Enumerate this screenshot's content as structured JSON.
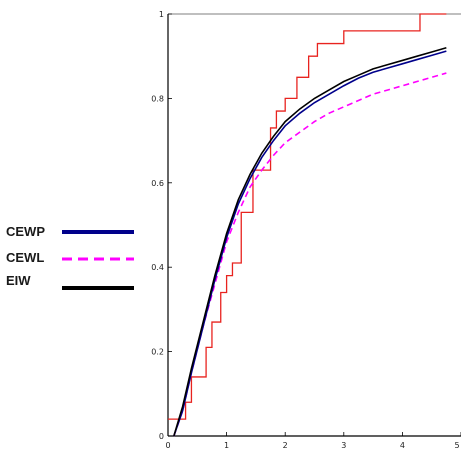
{
  "chart_data": {
    "type": "line",
    "title": "",
    "xlabel": "",
    "ylabel": "",
    "xlim": [
      0,
      5
    ],
    "ylim": [
      0,
      1
    ],
    "x_ticks": [
      "0",
      "1",
      "2",
      "3",
      "4",
      "5"
    ],
    "y_ticks": [
      "0",
      "0.2",
      "0.4",
      "0.6",
      "0.8",
      "1"
    ],
    "grid": false,
    "legend_position": "left",
    "series": [
      {
        "name": "EIW",
        "style": "solid",
        "color": "#000000",
        "x": [
          0.1,
          0.25,
          0.4,
          0.6,
          0.8,
          1.0,
          1.2,
          1.4,
          1.6,
          1.8,
          2.0,
          2.25,
          2.5,
          2.75,
          3.0,
          3.25,
          3.5,
          3.75,
          4.0,
          4.25,
          4.5,
          4.75
        ],
        "y": [
          0.0,
          0.07,
          0.16,
          0.27,
          0.38,
          0.48,
          0.56,
          0.62,
          0.67,
          0.71,
          0.745,
          0.775,
          0.8,
          0.82,
          0.84,
          0.855,
          0.87,
          0.88,
          0.89,
          0.9,
          0.91,
          0.92
        ]
      },
      {
        "name": "CEWP",
        "style": "solid",
        "color": "#00008b",
        "x": [
          0.1,
          0.25,
          0.4,
          0.6,
          0.8,
          1.0,
          1.2,
          1.4,
          1.6,
          1.8,
          2.0,
          2.25,
          2.5,
          2.75,
          3.0,
          3.25,
          3.5,
          3.75,
          4.0,
          4.25,
          4.5,
          4.75
        ],
        "y": [
          0.0,
          0.06,
          0.15,
          0.26,
          0.37,
          0.47,
          0.55,
          0.61,
          0.66,
          0.7,
          0.735,
          0.765,
          0.79,
          0.81,
          0.83,
          0.848,
          0.862,
          0.872,
          0.882,
          0.892,
          0.902,
          0.912
        ]
      },
      {
        "name": "CEWL",
        "style": "dashed",
        "color": "#ff00ff",
        "x": [
          0.1,
          0.25,
          0.4,
          0.6,
          0.8,
          1.0,
          1.2,
          1.4,
          1.6,
          1.8,
          2.0,
          2.25,
          2.5,
          2.75,
          3.0,
          3.25,
          3.5,
          3.75,
          4.0,
          4.25,
          4.5,
          4.75
        ],
        "y": [
          0.0,
          0.06,
          0.15,
          0.26,
          0.36,
          0.46,
          0.53,
          0.59,
          0.63,
          0.665,
          0.695,
          0.72,
          0.745,
          0.765,
          0.78,
          0.795,
          0.81,
          0.82,
          0.83,
          0.84,
          0.85,
          0.86
        ]
      },
      {
        "name": "",
        "style": "step",
        "color": "#e8231f",
        "x": [
          0.0,
          0.2,
          0.3,
          0.4,
          0.55,
          0.65,
          0.75,
          0.9,
          1.0,
          1.1,
          1.25,
          1.45,
          1.75,
          1.85,
          2.0,
          2.2,
          2.4,
          2.55,
          2.7,
          3.0,
          3.5,
          4.3,
          4.75
        ],
        "y": [
          0.04,
          0.04,
          0.08,
          0.14,
          0.14,
          0.21,
          0.27,
          0.34,
          0.38,
          0.41,
          0.53,
          0.63,
          0.73,
          0.77,
          0.8,
          0.85,
          0.9,
          0.93,
          0.93,
          0.96,
          0.96,
          1.0,
          1.0
        ]
      }
    ]
  }
}
